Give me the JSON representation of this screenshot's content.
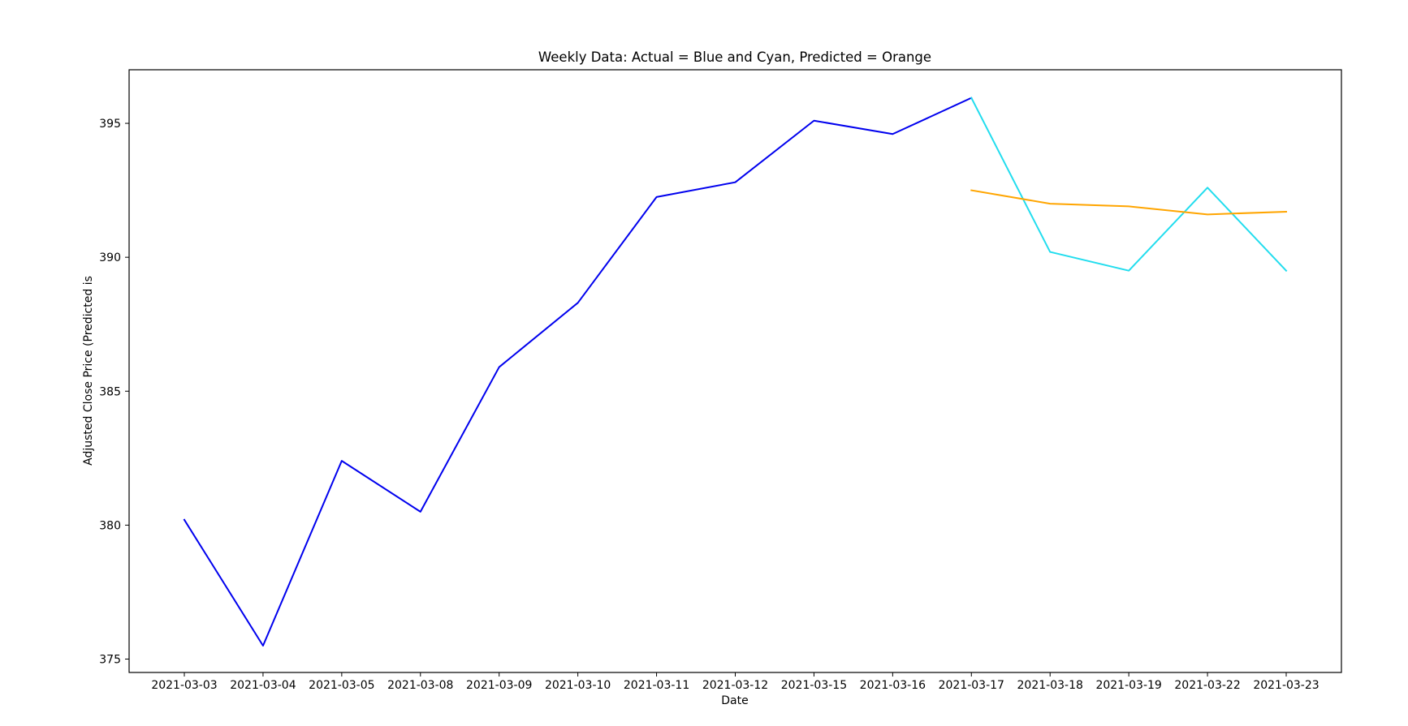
{
  "chart_data": {
    "type": "line",
    "title": "Weekly Data: Actual = Blue and Cyan, Predicted = Orange",
    "xlabel": "Date",
    "ylabel": "Adjusted Close Price (Predicted is",
    "categories": [
      "2021-03-03",
      "2021-03-04",
      "2021-03-05",
      "2021-03-08",
      "2021-03-09",
      "2021-03-10",
      "2021-03-11",
      "2021-03-12",
      "2021-03-15",
      "2021-03-16",
      "2021-03-17",
      "2021-03-18",
      "2021-03-19",
      "2021-03-22",
      "2021-03-23"
    ],
    "ylim": [
      374.5,
      397.0
    ],
    "yticks": [
      375,
      380,
      385,
      390,
      395
    ],
    "grid": false,
    "legend": "none",
    "series": [
      {
        "color": "#0000ee",
        "values": [
          380.2,
          375.5,
          382.4,
          380.5,
          385.9,
          388.3,
          392.25,
          392.8,
          395.1,
          394.6,
          395.95,
          null,
          null,
          null,
          null
        ]
      },
      {
        "color": "#22ddee",
        "values": [
          null,
          null,
          null,
          null,
          null,
          null,
          null,
          null,
          null,
          null,
          395.95,
          390.2,
          389.5,
          392.6,
          389.5
        ]
      },
      {
        "color": "#ffa500",
        "values": [
          null,
          null,
          null,
          null,
          null,
          null,
          null,
          null,
          null,
          null,
          392.5,
          392.0,
          391.9,
          391.6,
          391.7
        ]
      }
    ]
  }
}
